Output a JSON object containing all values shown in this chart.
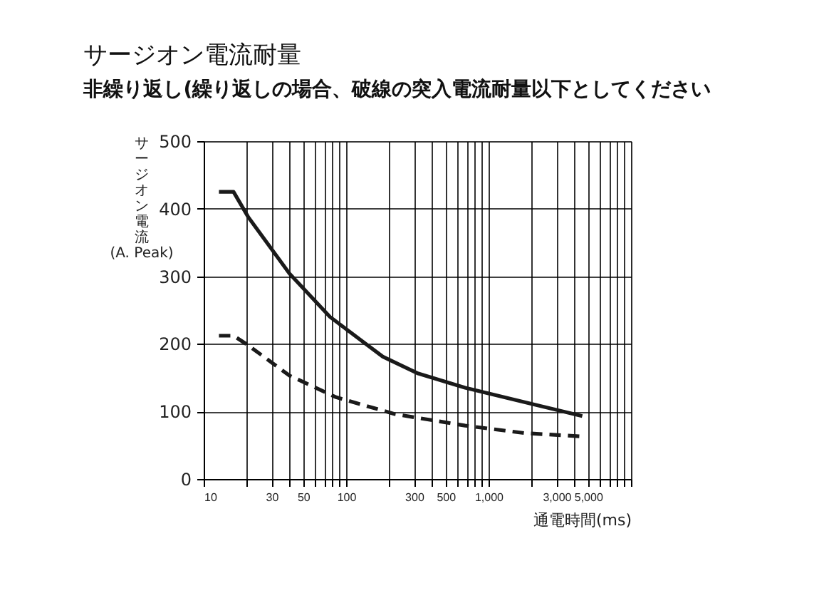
{
  "chart_data": {
    "type": "line",
    "title": "サージオン電流耐量",
    "subtitle": "非繰り返し(繰り返しの場合、破線の突入電流耐量以下としてください",
    "xlabel": "通電時間(ms)",
    "ylabel": "サージオン電流 (A. Peak)",
    "log": "x",
    "grid": true,
    "marker": "none",
    "xlim": [
      10,
      10000
    ],
    "xticks": [
      10,
      {
        "value": 20,
        "label": null
      },
      30,
      {
        "value": 40,
        "label": null
      },
      50,
      {
        "value": 60,
        "label": null
      },
      {
        "value": 70,
        "label": null
      },
      {
        "value": 80,
        "label": null
      },
      {
        "value": 90,
        "label": null
      },
      100,
      {
        "value": 200,
        "label": null
      },
      300,
      {
        "value": 400,
        "label": null
      },
      500,
      {
        "value": 600,
        "label": null
      },
      {
        "value": 700,
        "label": null
      },
      {
        "value": 800,
        "label": null
      },
      {
        "value": 900,
        "label": null
      },
      {
        "value": 1000,
        "label": "1,000"
      },
      {
        "value": 2000,
        "label": null
      },
      {
        "value": 3000,
        "label": "3,000"
      },
      {
        "value": 4000,
        "label": null
      },
      {
        "value": 5000,
        "label": "5,000"
      },
      {
        "value": 6000,
        "label": null
      },
      {
        "value": 7000,
        "label": null
      },
      {
        "value": 8000,
        "label": null
      },
      {
        "value": 9000,
        "label": null
      },
      {
        "value": 10000,
        "label": null
      }
    ],
    "ylim": [
      0,
      500
    ],
    "yticks": [
      0,
      100,
      200,
      300,
      400,
      500
    ],
    "series": [
      {
        "color": "#1a1a1a",
        "line_style": "solid",
        "x": [
          12.8,
          16.2,
          20.5,
          40,
          77,
          181,
          321,
          685,
          1770,
          4550
        ],
        "values": [
          425,
          425,
          388,
          304,
          240,
          181,
          156,
          135,
          114,
          93
        ]
      },
      {
        "color": "#1a1a1a",
        "line_style": "dashed",
        "x": [
          12.8,
          16.2,
          20.5,
          40,
          85,
          220,
          685,
          1770,
          4550
        ],
        "values": [
          212,
          212,
          198,
          153,
          121,
          96,
          79,
          68,
          63
        ]
      }
    ]
  }
}
